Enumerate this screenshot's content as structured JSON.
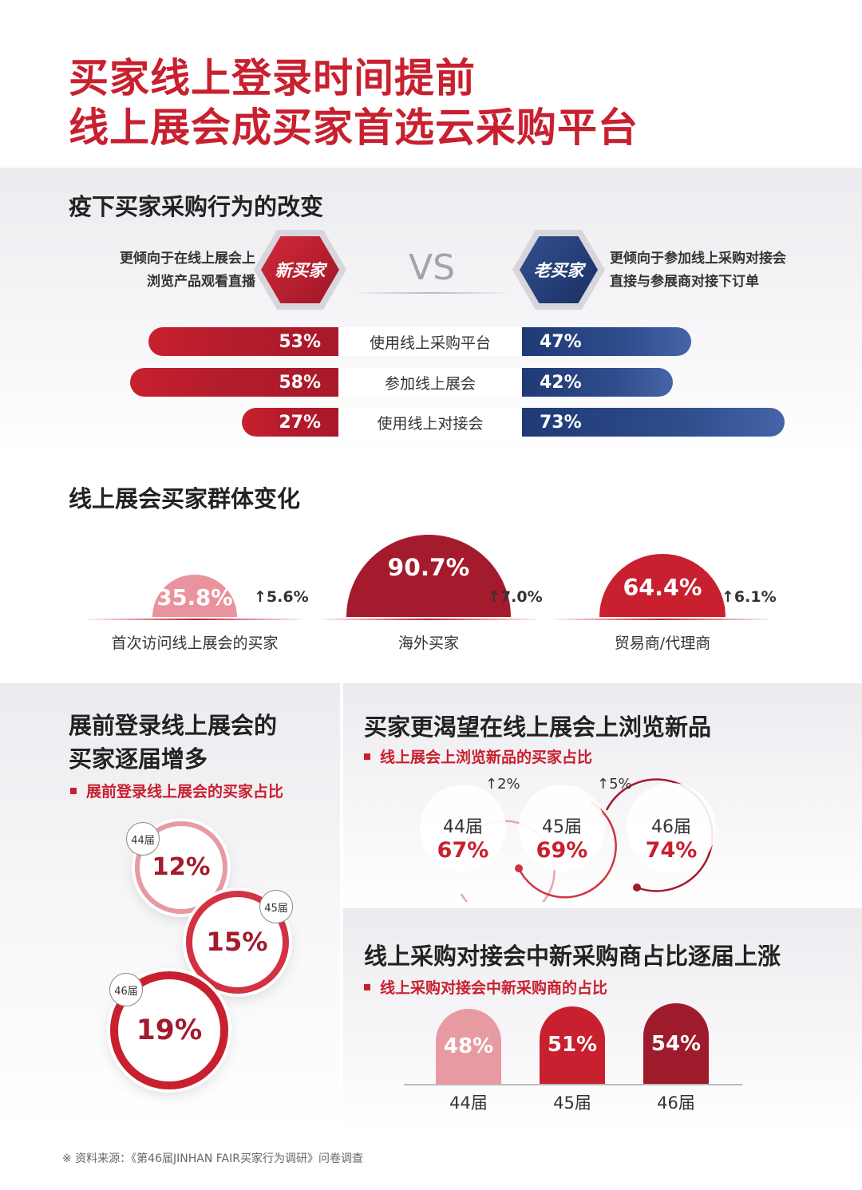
{
  "title": {
    "line1": "买家线上登录时间提前",
    "line2": "线上展会成买家首选云采购平台"
  },
  "section1": {
    "title": "疫下买家采购行为的改变",
    "left_desc_1": "更倾向于在线上展会上",
    "left_desc_2": "浏览产品观看直播",
    "new_badge": "新买家",
    "vs": "VS",
    "old_badge": "老买家",
    "right_desc_1": "更倾向于参加线上采购对接会",
    "right_desc_2": "直接与参展商对接下订单"
  },
  "section2": {
    "title": "线上展会买家群体变化"
  },
  "section3": {
    "title_1": "展前登录线上展会的",
    "title_2": "买家逐届增多",
    "subtitle": "展前登录线上展会的买家占比"
  },
  "section4": {
    "title": "买家更渴望在线上展会上浏览新品",
    "subtitle": "线上展会上浏览新品的买家占比"
  },
  "section5": {
    "title": "线上采购对接会中新采购商占比逐届上涨",
    "subtitle": "线上采购对接会中新采购商的占比"
  },
  "footer": "※ 资料来源：《第46届JINHAN FAIR买家行为调研》问卷调查",
  "colors": {
    "red": "#c8202f",
    "dark_red": "#a31b2c",
    "pink": "#e89aa3",
    "navy": "#1f3a75"
  },
  "chart_data": [
    {
      "type": "bar",
      "categories": [
        "使用线上采购平台",
        "参加线上展会",
        "使用线上对接会"
      ],
      "series": [
        {
          "name": "新买家",
          "values": [
            53,
            58,
            27
          ],
          "labels": [
            "53%",
            "58%",
            "27%"
          ]
        },
        {
          "name": "老买家",
          "values": [
            47,
            42,
            73
          ],
          "labels": [
            "47%",
            "42%",
            "73%"
          ]
        }
      ]
    },
    {
      "type": "bar",
      "categories": [
        "首次访问线上展会的买家",
        "海外买家",
        "贸易商/代理商"
      ],
      "values": [
        35.8,
        90.7,
        64.4
      ],
      "labels": [
        "35.8%",
        "90.7%",
        "64.4%"
      ],
      "changes": [
        "5.6%",
        "7.0%",
        "6.1%"
      ]
    },
    {
      "type": "bar",
      "categories": [
        "44届",
        "45届",
        "46届"
      ],
      "values": [
        12,
        15,
        19
      ],
      "labels": [
        "12%",
        "15%",
        "19%"
      ]
    },
    {
      "type": "bar",
      "categories": [
        "44届",
        "45届",
        "46届"
      ],
      "values": [
        67,
        69,
        74
      ],
      "labels": [
        "67%",
        "69%",
        "74%"
      ],
      "changes": [
        "2%",
        "5%"
      ]
    },
    {
      "type": "bar",
      "categories": [
        "44届",
        "45届",
        "46届"
      ],
      "values": [
        48,
        51,
        54
      ],
      "labels": [
        "48%",
        "51%",
        "54%"
      ]
    }
  ]
}
